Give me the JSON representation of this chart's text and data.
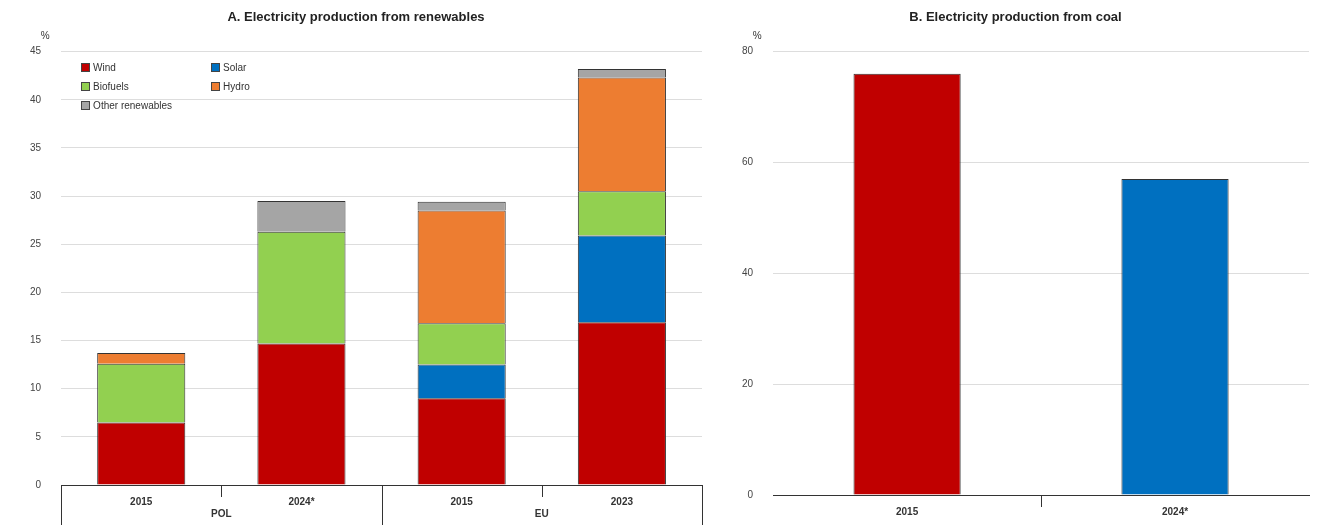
{
  "chart_data": [
    {
      "type": "bar",
      "title": "A. Electricity production from renewables",
      "ylabel": "%",
      "categories": [
        "2015",
        "2024*",
        "2015",
        "2023"
      ],
      "stacked": true,
      "series": [
        {
          "name": "Wind",
          "color": "#c00000",
          "values": [
            6.5,
            14.7,
            9.0,
            16.9
          ]
        },
        {
          "name": "Solar",
          "color": "#0070c0",
          "values": [
            0,
            0,
            3.5,
            9.0
          ]
        },
        {
          "name": "Biofuels",
          "color": "#92d050",
          "values": [
            6.1,
            11.6,
            4.3,
            4.6
          ]
        },
        {
          "name": "Hydro",
          "color": "#ed7d31",
          "values": [
            1.1,
            0,
            11.7,
            11.8
          ]
        },
        {
          "name": "Other renewables",
          "color": "#a5a5a5",
          "values": [
            0,
            3.2,
            0.9,
            0.9
          ]
        }
      ],
      "ylim": [
        0,
        45
      ],
      "yticks": [
        0,
        5,
        10,
        15,
        20,
        25,
        30,
        35,
        40,
        45
      ],
      "grid": "y",
      "legend": "top left",
      "annotations": [
        "POL",
        "EU"
      ]
    },
    {
      "type": "bar",
      "title": "B. Electricity production from coal",
      "ylabel": "%",
      "categories": [
        "2015",
        "2024*"
      ],
      "values": [
        76,
        57
      ],
      "colors": [
        "#c00000",
        "#0070c0"
      ],
      "ylim": [
        0,
        80
      ],
      "yticks": [
        0,
        20,
        40,
        60,
        80
      ],
      "grid": "y"
    }
  ]
}
